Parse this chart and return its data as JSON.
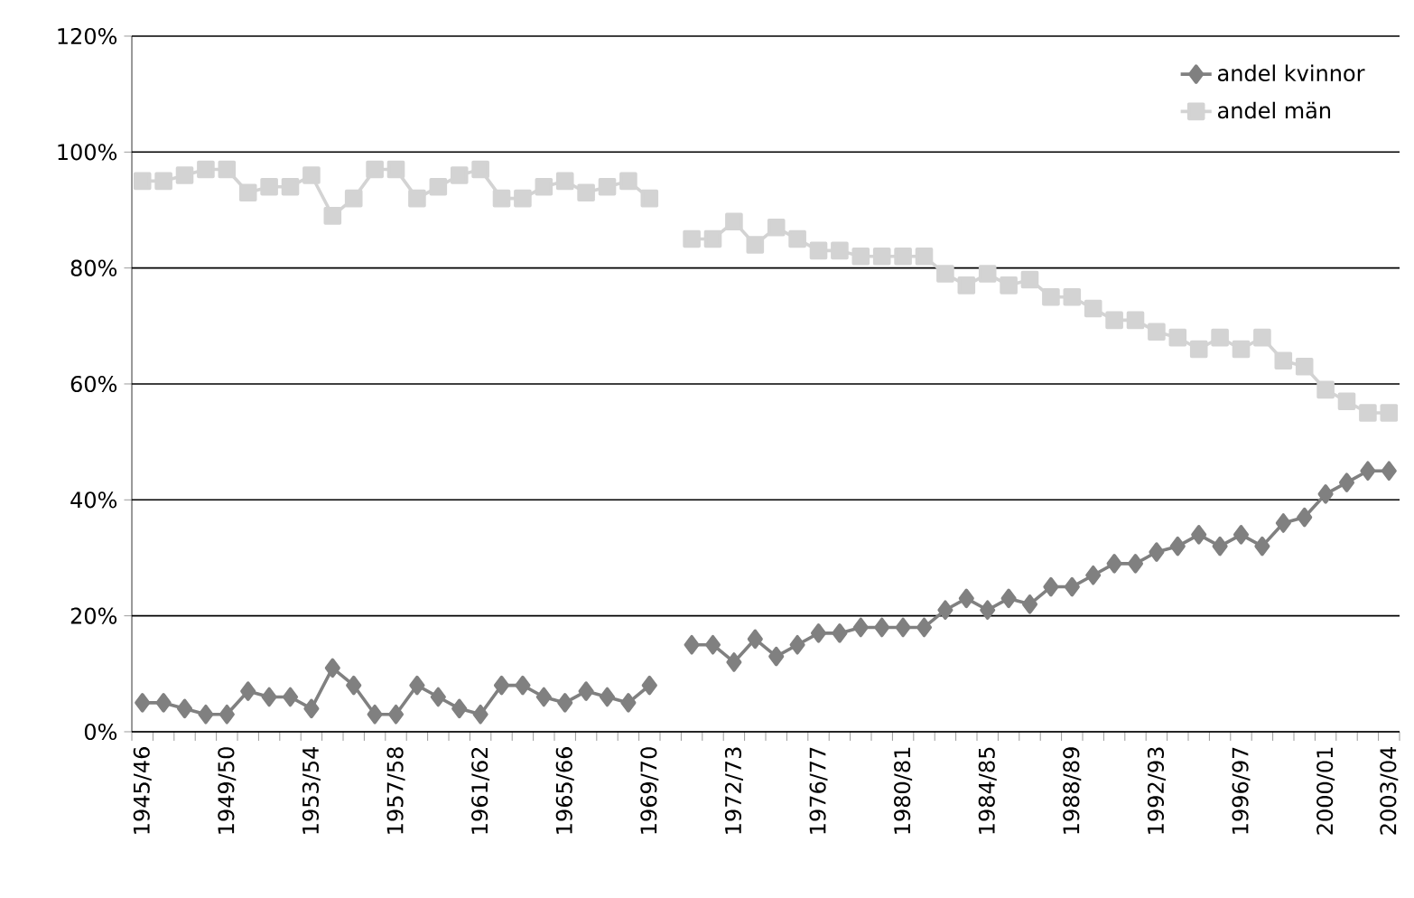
{
  "chart_data": {
    "type": "line",
    "categories": [
      "1945/46",
      null,
      null,
      null,
      "1949/50",
      null,
      null,
      null,
      "1953/54",
      null,
      null,
      null,
      "1957/58",
      null,
      null,
      null,
      "1961/62",
      null,
      null,
      null,
      "1965/66",
      null,
      null,
      null,
      "1969/70",
      null,
      null,
      null,
      "1972/73",
      null,
      null,
      null,
      "1976/77",
      null,
      null,
      null,
      "1980/81",
      null,
      null,
      null,
      "1984/85",
      null,
      null,
      null,
      "1988/89",
      null,
      null,
      null,
      "1992/93",
      null,
      null,
      null,
      "1996/97",
      null,
      null,
      null,
      "2000/01",
      null,
      null,
      "2003/04"
    ],
    "series": [
      {
        "name": "andel kvinnor",
        "color": "#808080",
        "marker": "diamond",
        "values": [
          5,
          5,
          4,
          3,
          3,
          7,
          6,
          6,
          4,
          11,
          8,
          3,
          3,
          8,
          6,
          4,
          3,
          8,
          8,
          6,
          5,
          7,
          6,
          5,
          8,
          null,
          15,
          15,
          12,
          16,
          13,
          15,
          17,
          17,
          18,
          18,
          18,
          18,
          21,
          23,
          21,
          23,
          22,
          25,
          25,
          27,
          29,
          29,
          31,
          32,
          34,
          32,
          34,
          32,
          36,
          37,
          41,
          43,
          45,
          45
        ]
      },
      {
        "name": "andel män",
        "color": "#d3d3d3",
        "marker": "square",
        "values": [
          95,
          95,
          96,
          97,
          97,
          93,
          94,
          94,
          96,
          89,
          92,
          97,
          97,
          92,
          94,
          96,
          97,
          92,
          92,
          94,
          95,
          93,
          94,
          95,
          92,
          null,
          85,
          85,
          88,
          84,
          87,
          85,
          83,
          83,
          82,
          82,
          82,
          82,
          79,
          77,
          79,
          77,
          78,
          75,
          75,
          73,
          71,
          71,
          69,
          68,
          66,
          68,
          66,
          68,
          64,
          63,
          59,
          57,
          55,
          55
        ]
      }
    ],
    "ylim": [
      0,
      120
    ],
    "yticks": [
      {
        "value": 0,
        "label": "0%"
      },
      {
        "value": 20,
        "label": "20%"
      },
      {
        "value": 40,
        "label": "40%"
      },
      {
        "value": 60,
        "label": "60%"
      },
      {
        "value": 80,
        "label": "80%"
      },
      {
        "value": 100,
        "label": "100%"
      },
      {
        "value": 120,
        "label": "120%"
      }
    ],
    "grid": "y",
    "legend": "top right"
  }
}
